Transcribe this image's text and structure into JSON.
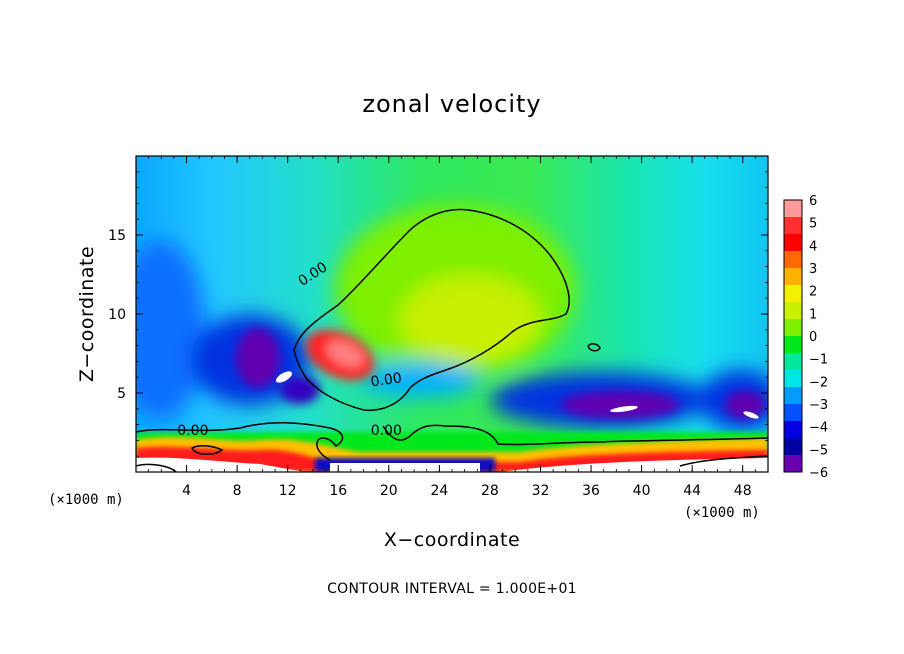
{
  "chart_data": {
    "type": "heatmap",
    "title": "zonal velocity",
    "xlabel": "X−coordinate",
    "ylabel": "Z−coordinate",
    "x_unit_label": "(×1000 m)",
    "y_unit_label": "(×1000 m)",
    "footer": "CONTOUR INTERVAL = 1.000E+01",
    "xlim": [
      0,
      50
    ],
    "ylim": [
      0,
      20
    ],
    "x_ticks": [
      {
        "value": 4,
        "label": "4"
      },
      {
        "value": 8,
        "label": "8"
      },
      {
        "value": 12,
        "label": "12"
      },
      {
        "value": 16,
        "label": "16"
      },
      {
        "value": 20,
        "label": "20"
      },
      {
        "value": 24,
        "label": "24"
      },
      {
        "value": 28,
        "label": "28"
      },
      {
        "value": 32,
        "label": "32"
      },
      {
        "value": 36,
        "label": "36"
      },
      {
        "value": 40,
        "label": "40"
      },
      {
        "value": 44,
        "label": "44"
      },
      {
        "value": 48,
        "label": "48"
      }
    ],
    "y_ticks": [
      {
        "value": 5,
        "label": "5"
      },
      {
        "value": 10,
        "label": "10"
      },
      {
        "value": 15,
        "label": "15"
      }
    ],
    "colorbar": {
      "labels": [
        "6",
        "5",
        "4",
        "3",
        "2",
        "1",
        "0",
        "−1",
        "−2",
        "−3",
        "−4",
        "−5",
        "−6"
      ],
      "vmin": -6,
      "vmax": 6,
      "colors": [
        "#ff9a9a",
        "#ff3030",
        "#ff0000",
        "#ff6a00",
        "#ffb300",
        "#f2f200",
        "#c8f000",
        "#7cf000",
        "#00e81a",
        "#00e89a",
        "#00e6e6",
        "#009cff",
        "#0050ff",
        "#0000e0",
        "#0000a0",
        "#6a00b0"
      ]
    },
    "contour_labels": [
      {
        "text": "0.00",
        "x": 14,
        "y": 12.5,
        "rotate": -33
      },
      {
        "text": "0.00",
        "x": 19.8,
        "y": 5.8,
        "rotate": -8
      },
      {
        "text": "0.00",
        "x": 19.8,
        "y": 2.6,
        "rotate": 0
      },
      {
        "text": "0.00",
        "x": 4.5,
        "y": 2.6,
        "rotate": 0
      }
    ],
    "features": [
      {
        "name": "positive-jet",
        "x": 16.5,
        "y": 7.5,
        "value": 5.5
      },
      {
        "name": "upper-positive-region",
        "x": 24,
        "y": 11,
        "value": 1
      },
      {
        "name": "left-negative-core",
        "x": 9.5,
        "y": 7.5,
        "value": -6
      },
      {
        "name": "right-negative-core",
        "x": 37,
        "y": 4.3,
        "value": -6
      },
      {
        "name": "far-right-negative-core",
        "x": 48.7,
        "y": 4,
        "value": -6
      },
      {
        "name": "surface-positive-band",
        "x": 25,
        "y": 1.5,
        "value": 4
      }
    ]
  }
}
